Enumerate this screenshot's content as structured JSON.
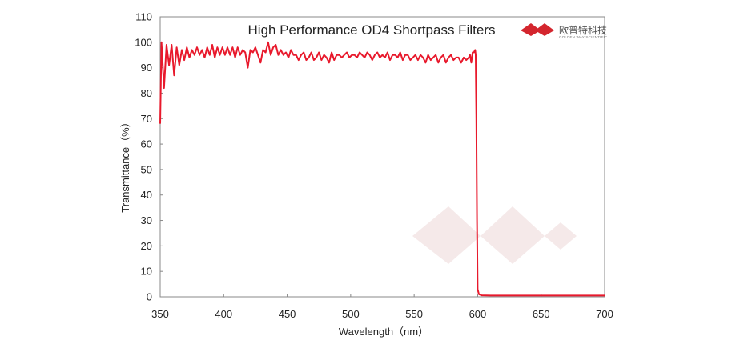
{
  "chart_data": {
    "type": "line",
    "title": "High Performance OD4 Shortpass  Filters",
    "xlabel": "Wavelength（nm）",
    "ylabel": "Transmittance（%）",
    "xlim": [
      350,
      700
    ],
    "ylim": [
      0,
      110
    ],
    "xticks": [
      350,
      400,
      450,
      500,
      550,
      600,
      650,
      700
    ],
    "yticks": [
      0,
      10,
      20,
      30,
      40,
      50,
      60,
      70,
      80,
      90,
      100,
      110
    ],
    "grid": false,
    "series": [
      {
        "color": "#e8192c",
        "x": [
          350,
          351,
          353,
          355,
          357,
          359,
          361,
          363,
          365,
          367,
          369,
          371,
          373,
          375,
          377,
          379,
          381,
          383,
          385,
          387,
          389,
          391,
          393,
          395,
          397,
          399,
          401,
          403,
          405,
          407,
          409,
          411,
          413,
          415,
          417,
          419,
          421,
          423,
          425,
          427,
          429,
          431,
          433,
          435,
          437,
          439,
          441,
          443,
          445,
          447,
          449,
          451,
          453,
          455,
          457,
          459,
          461,
          463,
          465,
          467,
          469,
          471,
          473,
          475,
          477,
          479,
          481,
          483,
          485,
          487,
          489,
          491,
          493,
          495,
          497,
          499,
          501,
          503,
          505,
          507,
          509,
          511,
          513,
          515,
          517,
          519,
          521,
          523,
          525,
          527,
          529,
          531,
          533,
          535,
          537,
          539,
          541,
          543,
          545,
          547,
          549,
          551,
          553,
          555,
          557,
          559,
          561,
          563,
          565,
          567,
          569,
          571,
          573,
          575,
          577,
          579,
          581,
          583,
          585,
          587,
          589,
          591,
          593,
          594,
          595,
          596,
          597,
          598,
          598.5,
          599,
          599.5,
          600,
          601,
          603,
          610,
          630,
          650,
          670,
          700
        ],
        "y": [
          68,
          100,
          82,
          99,
          91,
          99,
          87,
          98,
          91,
          97,
          93,
          98,
          94,
          97,
          95,
          98,
          95,
          97,
          94,
          98,
          95,
          99,
          94,
          98,
          95,
          98,
          95,
          98,
          95,
          98,
          94,
          98,
          95,
          97,
          96,
          90,
          97,
          96,
          98,
          95,
          92,
          97,
          96,
          100,
          95,
          98,
          99,
          95,
          97,
          95,
          96,
          94,
          97,
          95,
          95,
          93,
          95,
          96,
          93,
          94,
          96,
          93,
          94,
          96,
          93,
          95,
          94,
          92,
          96,
          93,
          95,
          95,
          94,
          95,
          96,
          94,
          95,
          95,
          94,
          96,
          95,
          94,
          96,
          95,
          93,
          95,
          96,
          94,
          95,
          94,
          96,
          93,
          95,
          95,
          94,
          96,
          93,
          95,
          95,
          93,
          94,
          95,
          93,
          95,
          94,
          92,
          95,
          93,
          94,
          95,
          92,
          94,
          95,
          92,
          94,
          95,
          93,
          94,
          94,
          92,
          94,
          93,
          94,
          95,
          92,
          96,
          96,
          97,
          95,
          70,
          30,
          3,
          1,
          0.6,
          0.5,
          0.5,
          0.5,
          0.5,
          0.5
        ]
      }
    ]
  },
  "logo": {
    "cn_text": "欧普特科技",
    "en_text": "GOLDEN WAY SCIENTIFIC",
    "color": "#d4262e"
  }
}
